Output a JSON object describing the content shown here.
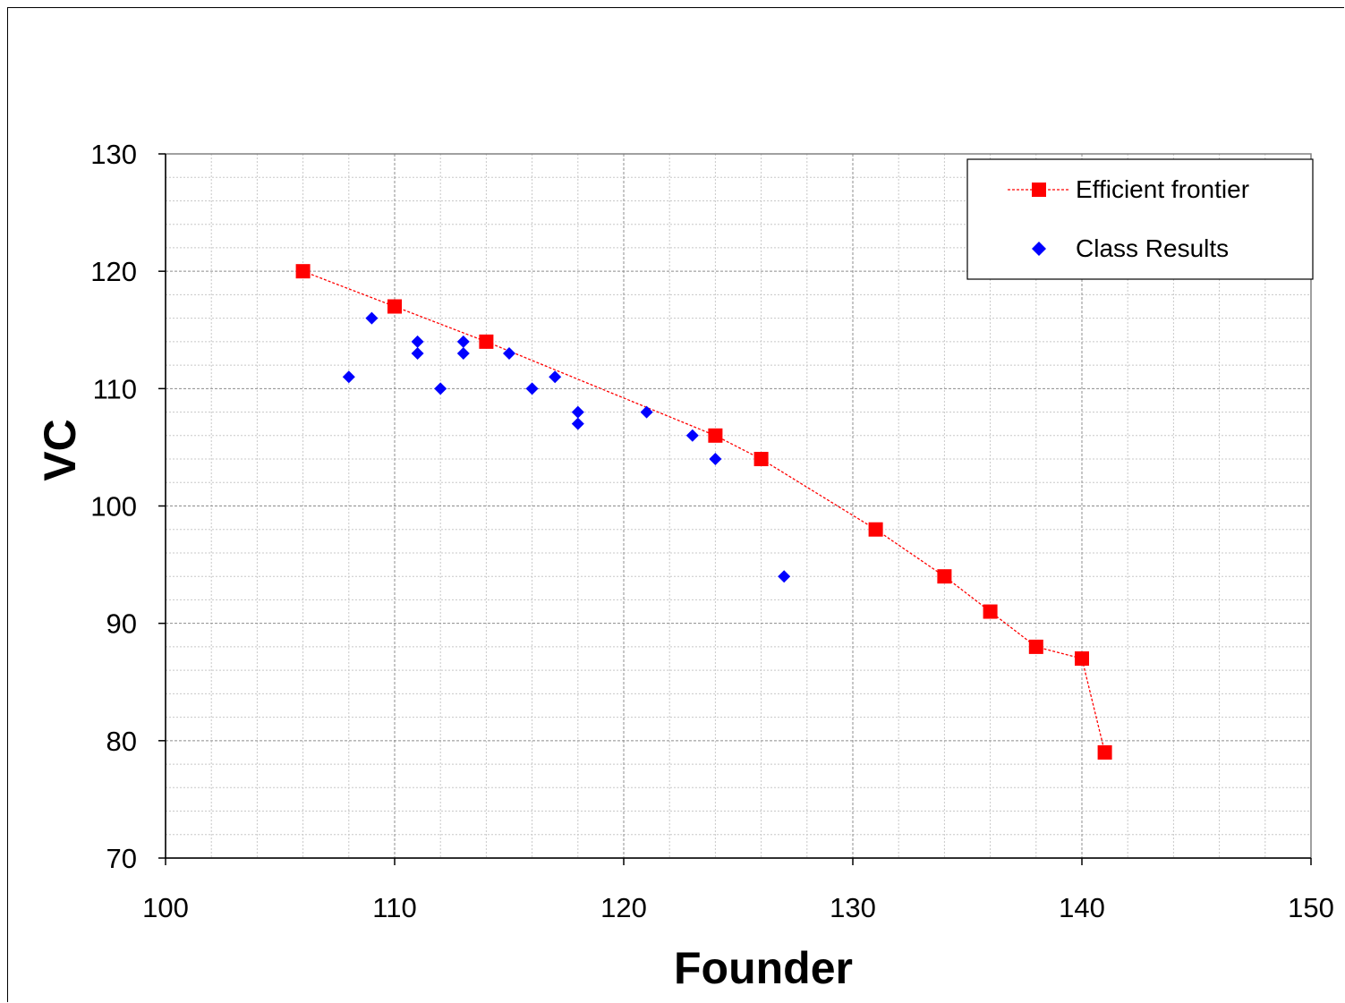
{
  "chart_data": {
    "type": "scatter",
    "title": "",
    "xlabel": "Founder",
    "ylabel": "VC",
    "xlim": [
      100,
      150
    ],
    "ylim": [
      70,
      130
    ],
    "x_major_step": 10,
    "x_minor_step": 2,
    "y_major_step": 10,
    "y_minor_step": 2,
    "grid": true,
    "legend_position": "top-right",
    "x_tick_labels": [
      "100",
      "110",
      "120",
      "130",
      "140",
      "150"
    ],
    "y_tick_labels": [
      "70",
      "80",
      "90",
      "100",
      "110",
      "120",
      "130"
    ],
    "series": [
      {
        "name": "Efficient frontier",
        "style": "line-with-square-markers",
        "color": "#ff0000",
        "points": [
          [
            106,
            120
          ],
          [
            110,
            117
          ],
          [
            114,
            114
          ],
          [
            124,
            106
          ],
          [
            126,
            104
          ],
          [
            131,
            98
          ],
          [
            134,
            94
          ],
          [
            136,
            91
          ],
          [
            138,
            88
          ],
          [
            140,
            87
          ],
          [
            141,
            79
          ]
        ]
      },
      {
        "name": "Class Results",
        "style": "diamond-markers",
        "color": "#0000ff",
        "points": [
          [
            108,
            111
          ],
          [
            109,
            116
          ],
          [
            111,
            114
          ],
          [
            111,
            113
          ],
          [
            112,
            110
          ],
          [
            113,
            114
          ],
          [
            113,
            113
          ],
          [
            115,
            113
          ],
          [
            116,
            110
          ],
          [
            117,
            111
          ],
          [
            118,
            108
          ],
          [
            118,
            107
          ],
          [
            121,
            108
          ],
          [
            123,
            106
          ],
          [
            124,
            104
          ],
          [
            127,
            94
          ]
        ]
      }
    ]
  }
}
